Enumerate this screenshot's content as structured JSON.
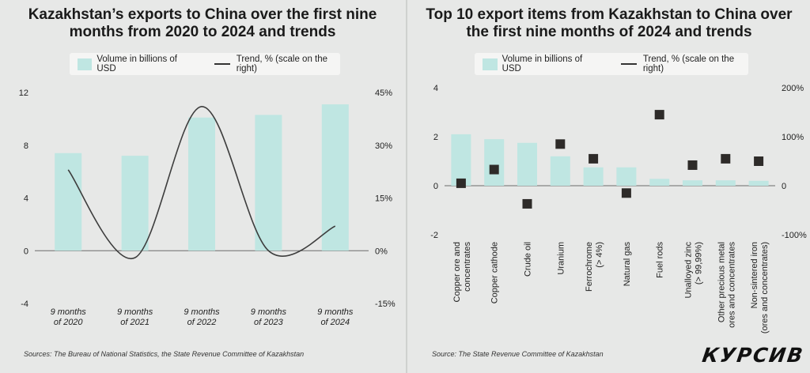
{
  "left": {
    "title": "Kazakhstan’s exports to China over the first nine months from 2020 to 2024 and trends",
    "legend": {
      "bar_label": "Volume in billions of USD",
      "line_label": "Trend, % (scale on the right)"
    },
    "source": "Sources:  The Bureau of National Statistics, the State Revenue Committee of Kazakhstan"
  },
  "right": {
    "title": "Top 10 export items from Kazakhstan to China over the first nine months of 2024 and trends",
    "legend": {
      "bar_label": "Volume in billions of USD",
      "line_label": "Trend, % (scale on the right)"
    },
    "source": "Source: The State Revenue Committee of Kazakhstan",
    "logo": "КУРСИВ"
  },
  "colors": {
    "bar": "#bfe6e2",
    "line": "#3d3d3d",
    "marker": "#2e2b29",
    "background": "#e7e8e7"
  },
  "chart_data": [
    {
      "type": "bar",
      "categories": [
        "9 months of 2020",
        "9 months of 2021",
        "9 months of 2022",
        "9 months of 2023",
        "9 months of 2024"
      ],
      "series": [
        {
          "name": "Volume in billions of USD",
          "axis": "left",
          "values": [
            7.4,
            7.2,
            10.1,
            10.3,
            11.1
          ]
        },
        {
          "name": "Trend, % (scale on the right)",
          "type": "line",
          "axis": "right",
          "values": [
            23,
            -2,
            41,
            0,
            7
          ]
        }
      ],
      "y_left": {
        "ticks": [
          -4,
          0,
          4,
          8,
          12
        ],
        "range": [
          -4,
          12
        ]
      },
      "y_right": {
        "ticks": [
          "-15%",
          "0%",
          "15%",
          "30%",
          "45%"
        ],
        "range": [
          -15,
          45
        ]
      },
      "legend_position": "top"
    },
    {
      "type": "bar",
      "categories": [
        "Copper ore and concentrates",
        "Copper cathode",
        "Crude oil",
        "Uranium",
        "Ferrochrome (> 4%)",
        "Natural gas",
        "Fuel rods",
        "Unalloyed zinc (> 99,99%)",
        "Other precious metal ores and concentrates",
        "Non-sintered iron (ores and concentrates)"
      ],
      "series": [
        {
          "name": "Volume in billions of USD",
          "axis": "left",
          "values": [
            2.1,
            1.9,
            1.75,
            1.2,
            0.75,
            0.75,
            0.28,
            0.22,
            0.22,
            0.2
          ]
        },
        {
          "name": "Trend, % (scale on the right)",
          "type": "scatter",
          "axis": "right",
          "values": [
            5,
            33,
            -37,
            85,
            55,
            -15,
            145,
            42,
            55,
            50
          ]
        }
      ],
      "y_left": {
        "ticks": [
          -2,
          0,
          2,
          4
        ],
        "range": [
          -2,
          4
        ]
      },
      "y_right": {
        "ticks": [
          "-100%",
          "0",
          "100%",
          "200%"
        ],
        "range": [
          -100,
          200
        ]
      },
      "legend_position": "top"
    }
  ]
}
